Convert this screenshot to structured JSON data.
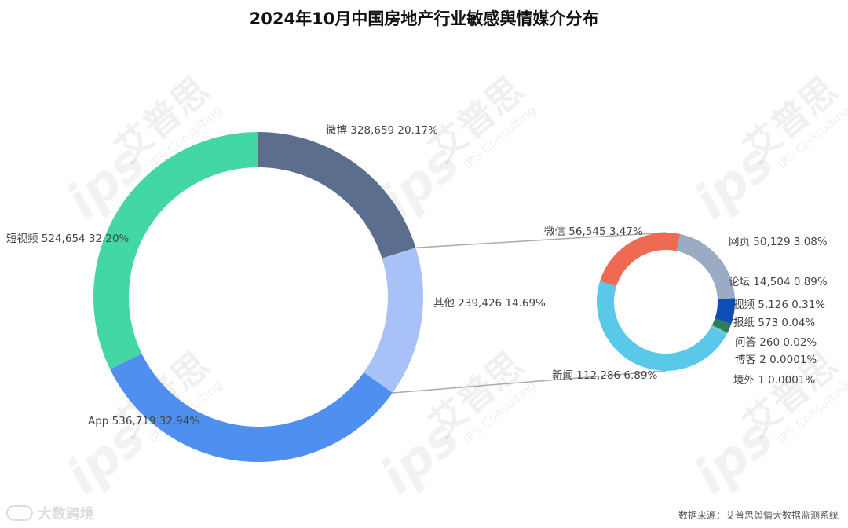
{
  "title": "2024年10月中国房地产行业敏感舆情媒介分布",
  "source": "数据来源：艾普思舆情大数据监测系统",
  "watermark": {
    "brand": "艾普思",
    "sub": "IPS Consulting",
    "mark": "ips"
  },
  "logo": {
    "text": "大数跨境"
  },
  "colors": {
    "background": "#ffffff",
    "connector": "#aaaaaa"
  },
  "chart_data": [
    {
      "type": "pie",
      "style": "donut",
      "slices": [
        {
          "name": "微博",
          "value": 328659,
          "percent": "20.17%",
          "label": "微博 328,659 20.17%",
          "color": "#5b6e8e"
        },
        {
          "name": "其他",
          "value": 239426,
          "percent": "14.69%",
          "label": "其他 239,426 14.69%",
          "color": "#a8c1f7"
        },
        {
          "name": "App",
          "value": 536719,
          "percent": "32.94%",
          "label": "App 536,719 32.94%",
          "color": "#4e8ff0"
        },
        {
          "name": "短视频",
          "value": 524654,
          "percent": "32.20%",
          "label": "短视频 524,654 32.20%",
          "color": "#44d7a6"
        }
      ]
    },
    {
      "type": "pie",
      "style": "donut",
      "breakdown_of": "其他",
      "slices": [
        {
          "name": "网页",
          "value": 50129,
          "percent": "3.08%",
          "label": "网页 50,129 3.08%",
          "color": "#9aabc3"
        },
        {
          "name": "论坛",
          "value": 14504,
          "percent": "0.89%",
          "label": "论坛 14,504 0.89%",
          "color": "#0c4db8"
        },
        {
          "name": "视频",
          "value": 5126,
          "percent": "0.31%",
          "label": "视频 5,126 0.31%",
          "color": "#2f7a58"
        },
        {
          "name": "报纸",
          "value": 573,
          "percent": "0.04%",
          "label": "报纸 573 0.04%",
          "color": "#34a36b"
        },
        {
          "name": "问答",
          "value": 260,
          "percent": "0.02%",
          "label": "问答 260 0.02%",
          "color": "#7fd0b0"
        },
        {
          "name": "博客",
          "value": 2,
          "percent": "0.0001%",
          "label": "博客 2 0.0001%",
          "color": "#5ac8e8"
        },
        {
          "name": "境外",
          "value": 1,
          "percent": "0.0001%",
          "label": "境外 1 0.0001%",
          "color": "#5ac8e8"
        },
        {
          "name": "新闻",
          "value": 112286,
          "percent": "6.89%",
          "label": "新闻 112,286 6.89%",
          "color": "#5ac8e8"
        },
        {
          "name": "微信",
          "value": 56545,
          "percent": "3.47%",
          "label": "微信 56,545 3.47%",
          "color": "#ef6a52"
        }
      ]
    }
  ]
}
